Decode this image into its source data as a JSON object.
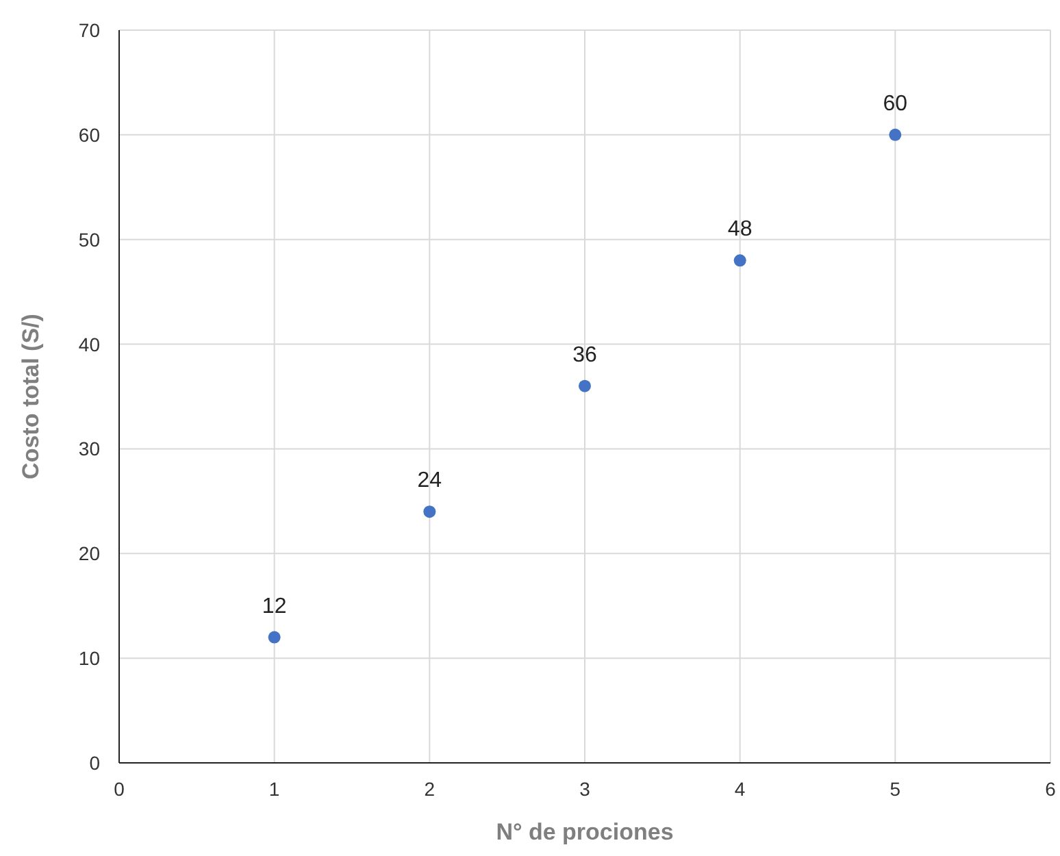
{
  "chart_data": {
    "type": "scatter",
    "xlabel": "N° de prociones",
    "ylabel": "Costo total (S/)",
    "x": [
      1,
      2,
      3,
      4,
      5
    ],
    "series": [
      {
        "color": "#4472c4",
        "values": [
          12,
          24,
          36,
          48,
          60
        ]
      }
    ],
    "xlim": [
      0,
      6
    ],
    "xticks": [
      0,
      1,
      2,
      3,
      4,
      5,
      6
    ],
    "ylim": [
      0,
      70
    ],
    "yticks": [
      0,
      10,
      20,
      30,
      40,
      50,
      60,
      70
    ],
    "grid": true,
    "data_labels": true,
    "marker": "circle"
  }
}
